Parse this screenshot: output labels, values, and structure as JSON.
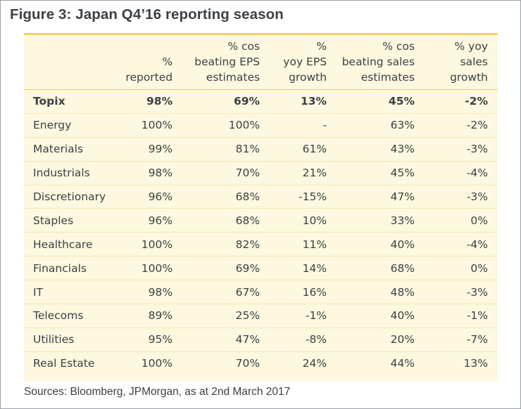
{
  "figure": {
    "title": "Figure 3:  Japan Q4’16 reporting season",
    "source": "Sources: Bloomberg, JPMorgan, as at 2nd March 2017"
  },
  "table": {
    "headers": [
      [],
      [
        "%",
        "reported"
      ],
      [
        "% cos",
        "beating EPS",
        "estimates"
      ],
      [
        "%",
        "yoy EPS",
        "growth"
      ],
      [
        "% cos",
        "beating sales",
        "estimates"
      ],
      [
        "% yoy",
        "sales",
        "growth"
      ]
    ],
    "rows": [
      {
        "name": "Topix",
        "reported": "98%",
        "beat_eps": "69%",
        "eps_growth": "13%",
        "beat_sales": "45%",
        "sales_growth": "-2%",
        "highlight": true
      },
      {
        "name": "Energy",
        "reported": "100%",
        "beat_eps": "100%",
        "eps_growth": "-",
        "beat_sales": "63%",
        "sales_growth": "-2%"
      },
      {
        "name": "Materials",
        "reported": "99%",
        "beat_eps": "81%",
        "eps_growth": "61%",
        "beat_sales": "43%",
        "sales_growth": "-3%"
      },
      {
        "name": "Industrials",
        "reported": "98%",
        "beat_eps": "70%",
        "eps_growth": "21%",
        "beat_sales": "45%",
        "sales_growth": "-4%"
      },
      {
        "name": "Discretionary",
        "reported": "96%",
        "beat_eps": "68%",
        "eps_growth": "-15%",
        "beat_sales": "47%",
        "sales_growth": "-3%"
      },
      {
        "name": "Staples",
        "reported": "96%",
        "beat_eps": "68%",
        "eps_growth": "10%",
        "beat_sales": "33%",
        "sales_growth": "0%"
      },
      {
        "name": "Healthcare",
        "reported": "100%",
        "beat_eps": "82%",
        "eps_growth": "11%",
        "beat_sales": "40%",
        "sales_growth": "-4%"
      },
      {
        "name": "Financials",
        "reported": "100%",
        "beat_eps": "69%",
        "eps_growth": "14%",
        "beat_sales": "68%",
        "sales_growth": "0%"
      },
      {
        "name": "IT",
        "reported": "98%",
        "beat_eps": "67%",
        "eps_growth": "16%",
        "beat_sales": "48%",
        "sales_growth": "-3%"
      },
      {
        "name": "Telecoms",
        "reported": "89%",
        "beat_eps": "25%",
        "eps_growth": "-1%",
        "beat_sales": "40%",
        "sales_growth": "-1%"
      },
      {
        "name": "Utilities",
        "reported": "95%",
        "beat_eps": "47%",
        "eps_growth": "-8%",
        "beat_sales": "20%",
        "sales_growth": "-7%"
      },
      {
        "name": "Real Estate",
        "reported": "100%",
        "beat_eps": "70%",
        "eps_growth": "24%",
        "beat_sales": "44%",
        "sales_growth": "13%"
      }
    ]
  },
  "colors": {
    "panel_background": "#fdf8df",
    "accent_rule": "#f2d25e",
    "text": "#3c4146"
  }
}
